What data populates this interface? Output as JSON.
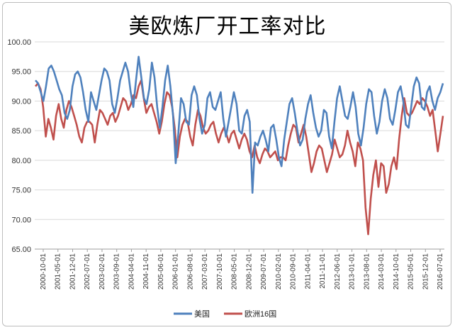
{
  "chart_data": {
    "type": "line",
    "title": "美欧炼厂开工率对比",
    "xlabel": "",
    "ylabel": "",
    "ylim": [
      65,
      100
    ],
    "yticks": [
      "65.00",
      "70.00",
      "75.00",
      "80.00",
      "85.00",
      "90.00",
      "95.00",
      "100.00"
    ],
    "x_ticks": [
      "2000-10-01",
      "2001-05-01",
      "2001-12-01",
      "2002-07-01",
      "2003-02-01",
      "2003-09-01",
      "2004-04-01",
      "2004-11-01",
      "2005-06-01",
      "2006-01-01",
      "2006-08-01",
      "2007-03-01",
      "2007-10-01",
      "2008-05-01",
      "2008-12-01",
      "2009-07-01",
      "2010-02-01",
      "2010-09-01",
      "2011-04-01",
      "2011-11-01",
      "2012-06-01",
      "2013-01-01",
      "2013-08-01",
      "2014-03-01",
      "2014-10-01",
      "2015-05-01",
      "2015-12-01",
      "2016-07-01"
    ],
    "grid": true,
    "legend_position": "bottom",
    "colors": {
      "us": "#4f81bd",
      "eu": "#c0504d"
    },
    "series": [
      {
        "name": "美国",
        "values": [
          93.5,
          93.0,
          91.5,
          90.0,
          92.5,
          95.5,
          96.0,
          95.0,
          93.5,
          92.0,
          91.0,
          88.0,
          87.0,
          88.5,
          92.5,
          94.5,
          95.0,
          94.0,
          91.5,
          88.5,
          86.5,
          91.5,
          90.0,
          88.5,
          91.0,
          93.5,
          95.5,
          95.0,
          93.5,
          89.5,
          88.0,
          90.5,
          93.5,
          95.0,
          96.5,
          95.0,
          91.5,
          89.0,
          93.5,
          97.5,
          94.0,
          90.5,
          89.5,
          92.0,
          96.5,
          94.0,
          89.0,
          85.5,
          89.0,
          93.5,
          96.0,
          92.5,
          87.5,
          79.5,
          84.5,
          90.5,
          89.5,
          86.5,
          86.0,
          91.0,
          92.5,
          91.0,
          87.0,
          84.5,
          86.0,
          90.5,
          91.5,
          89.0,
          88.5,
          90.0,
          91.5,
          87.0,
          84.0,
          86.5,
          89.0,
          91.5,
          89.5,
          85.0,
          84.5,
          87.5,
          88.5,
          86.5,
          74.5,
          83.0,
          82.5,
          84.0,
          85.0,
          83.5,
          81.5,
          85.5,
          86.0,
          83.5,
          80.5,
          79.0,
          83.5,
          86.5,
          89.5,
          90.5,
          88.0,
          85.0,
          82.5,
          83.5,
          87.0,
          89.5,
          91.0,
          88.0,
          85.5,
          84.0,
          85.0,
          88.5,
          88.0,
          84.0,
          82.0,
          86.5,
          90.5,
          92.5,
          90.0,
          87.5,
          87.0,
          89.0,
          91.5,
          89.0,
          84.5,
          82.5,
          85.5,
          89.5,
          92.0,
          91.5,
          87.5,
          84.5,
          86.5,
          90.0,
          92.0,
          90.5,
          87.0,
          86.0,
          88.5,
          91.5,
          92.5,
          90.0,
          86.0,
          85.5,
          89.0,
          92.5,
          94.0,
          93.0,
          89.0,
          88.5,
          91.5,
          92.5,
          90.0,
          88.5,
          90.5,
          91.5,
          93.0
        ]
      },
      {
        "name": "欧洲16国",
        "values": [
          92.5,
          93.0,
          92.0,
          89.0,
          84.0,
          87.0,
          85.5,
          83.5,
          87.5,
          89.5,
          87.0,
          85.5,
          88.5,
          90.0,
          89.0,
          87.5,
          86.0,
          84.0,
          83.0,
          85.5,
          86.5,
          86.5,
          86.0,
          83.0,
          86.0,
          88.5,
          88.0,
          87.0,
          86.0,
          87.5,
          88.0,
          86.5,
          87.5,
          89.0,
          90.5,
          90.0,
          88.5,
          89.5,
          91.0,
          90.5,
          92.5,
          93.5,
          90.5,
          88.0,
          89.0,
          89.5,
          88.0,
          86.5,
          84.5,
          86.5,
          89.5,
          91.5,
          91.0,
          89.0,
          85.5,
          80.5,
          84.0,
          86.0,
          87.0,
          86.5,
          84.0,
          82.5,
          86.0,
          88.5,
          87.5,
          85.5,
          84.5,
          85.0,
          86.0,
          86.5,
          84.5,
          83.0,
          84.5,
          85.5,
          84.5,
          83.0,
          84.5,
          85.0,
          83.5,
          82.0,
          83.5,
          84.5,
          83.5,
          81.5,
          80.5,
          82.5,
          80.5,
          79.5,
          81.0,
          82.0,
          81.5,
          80.5,
          81.0,
          81.5,
          80.0,
          80.5,
          80.5,
          80.0,
          82.5,
          84.5,
          86.0,
          85.5,
          83.0,
          84.5,
          86.0,
          84.0,
          81.0,
          78.0,
          79.5,
          81.5,
          82.5,
          82.0,
          80.0,
          78.0,
          79.5,
          81.0,
          83.5,
          82.0,
          80.5,
          81.0,
          82.5,
          85.0,
          83.0,
          81.5,
          79.0,
          83.0,
          82.0,
          80.0,
          72.0,
          67.5,
          73.5,
          77.5,
          80.0,
          75.5,
          79.5,
          79.0,
          74.5,
          76.0,
          79.0,
          80.5,
          78.5,
          83.5,
          87.5,
          90.5,
          88.0,
          87.5,
          88.0,
          89.0,
          90.0,
          89.5,
          90.5,
          90.0,
          89.0,
          87.5,
          88.5,
          85.0,
          81.5,
          84.5,
          87.5
        ]
      }
    ]
  }
}
